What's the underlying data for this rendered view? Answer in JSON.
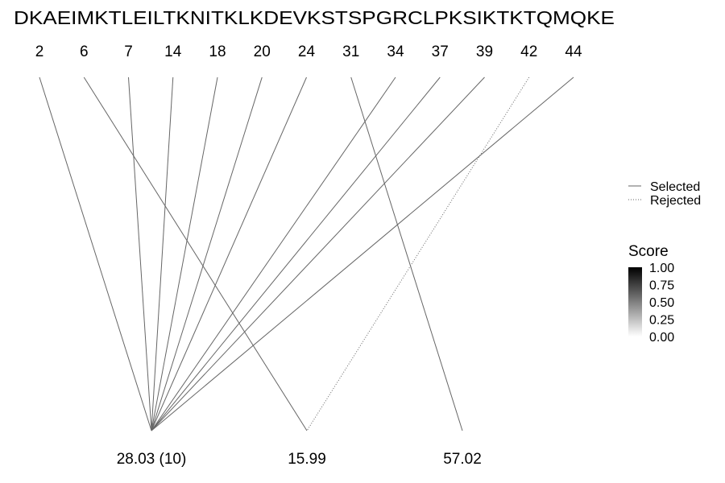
{
  "sequence": "DKAEIMKTLEILTKNITKLKDEVKSTSPGRCLPKSIKTKTQMQKE",
  "positions": [
    "2",
    "6",
    "7",
    "14",
    "18",
    "20",
    "24",
    "31",
    "34",
    "37",
    "39",
    "42",
    "44"
  ],
  "masses": [
    "28.03 (10)",
    "15.99",
    "57.02"
  ],
  "links": [
    {
      "position": "2",
      "mass": "28.03 (10)",
      "status": "Selected"
    },
    {
      "position": "7",
      "mass": "28.03 (10)",
      "status": "Selected"
    },
    {
      "position": "14",
      "mass": "28.03 (10)",
      "status": "Selected"
    },
    {
      "position": "18",
      "mass": "28.03 (10)",
      "status": "Selected"
    },
    {
      "position": "20",
      "mass": "28.03 (10)",
      "status": "Selected"
    },
    {
      "position": "24",
      "mass": "28.03 (10)",
      "status": "Selected"
    },
    {
      "position": "34",
      "mass": "28.03 (10)",
      "status": "Selected"
    },
    {
      "position": "37",
      "mass": "28.03 (10)",
      "status": "Selected"
    },
    {
      "position": "39",
      "mass": "28.03 (10)",
      "status": "Selected"
    },
    {
      "position": "44",
      "mass": "28.03 (10)",
      "status": "Selected"
    },
    {
      "position": "6",
      "mass": "15.99",
      "status": "Selected"
    },
    {
      "position": "42",
      "mass": "15.99",
      "status": "Rejected"
    },
    {
      "position": "31",
      "mass": "57.02",
      "status": "Selected"
    }
  ],
  "legend_linetype": {
    "items": [
      {
        "label": "Selected",
        "style": "solid"
      },
      {
        "label": "Rejected",
        "style": "dotted"
      }
    ]
  },
  "legend_score": {
    "title": "Score",
    "ticks": [
      "1.00",
      "0.75",
      "0.50",
      "0.25",
      "0.00"
    ],
    "gradient_colors": [
      "#ffffff",
      "#000000"
    ]
  },
  "colors": {
    "line": "#666666",
    "text": "#000000",
    "background": "#ffffff"
  }
}
